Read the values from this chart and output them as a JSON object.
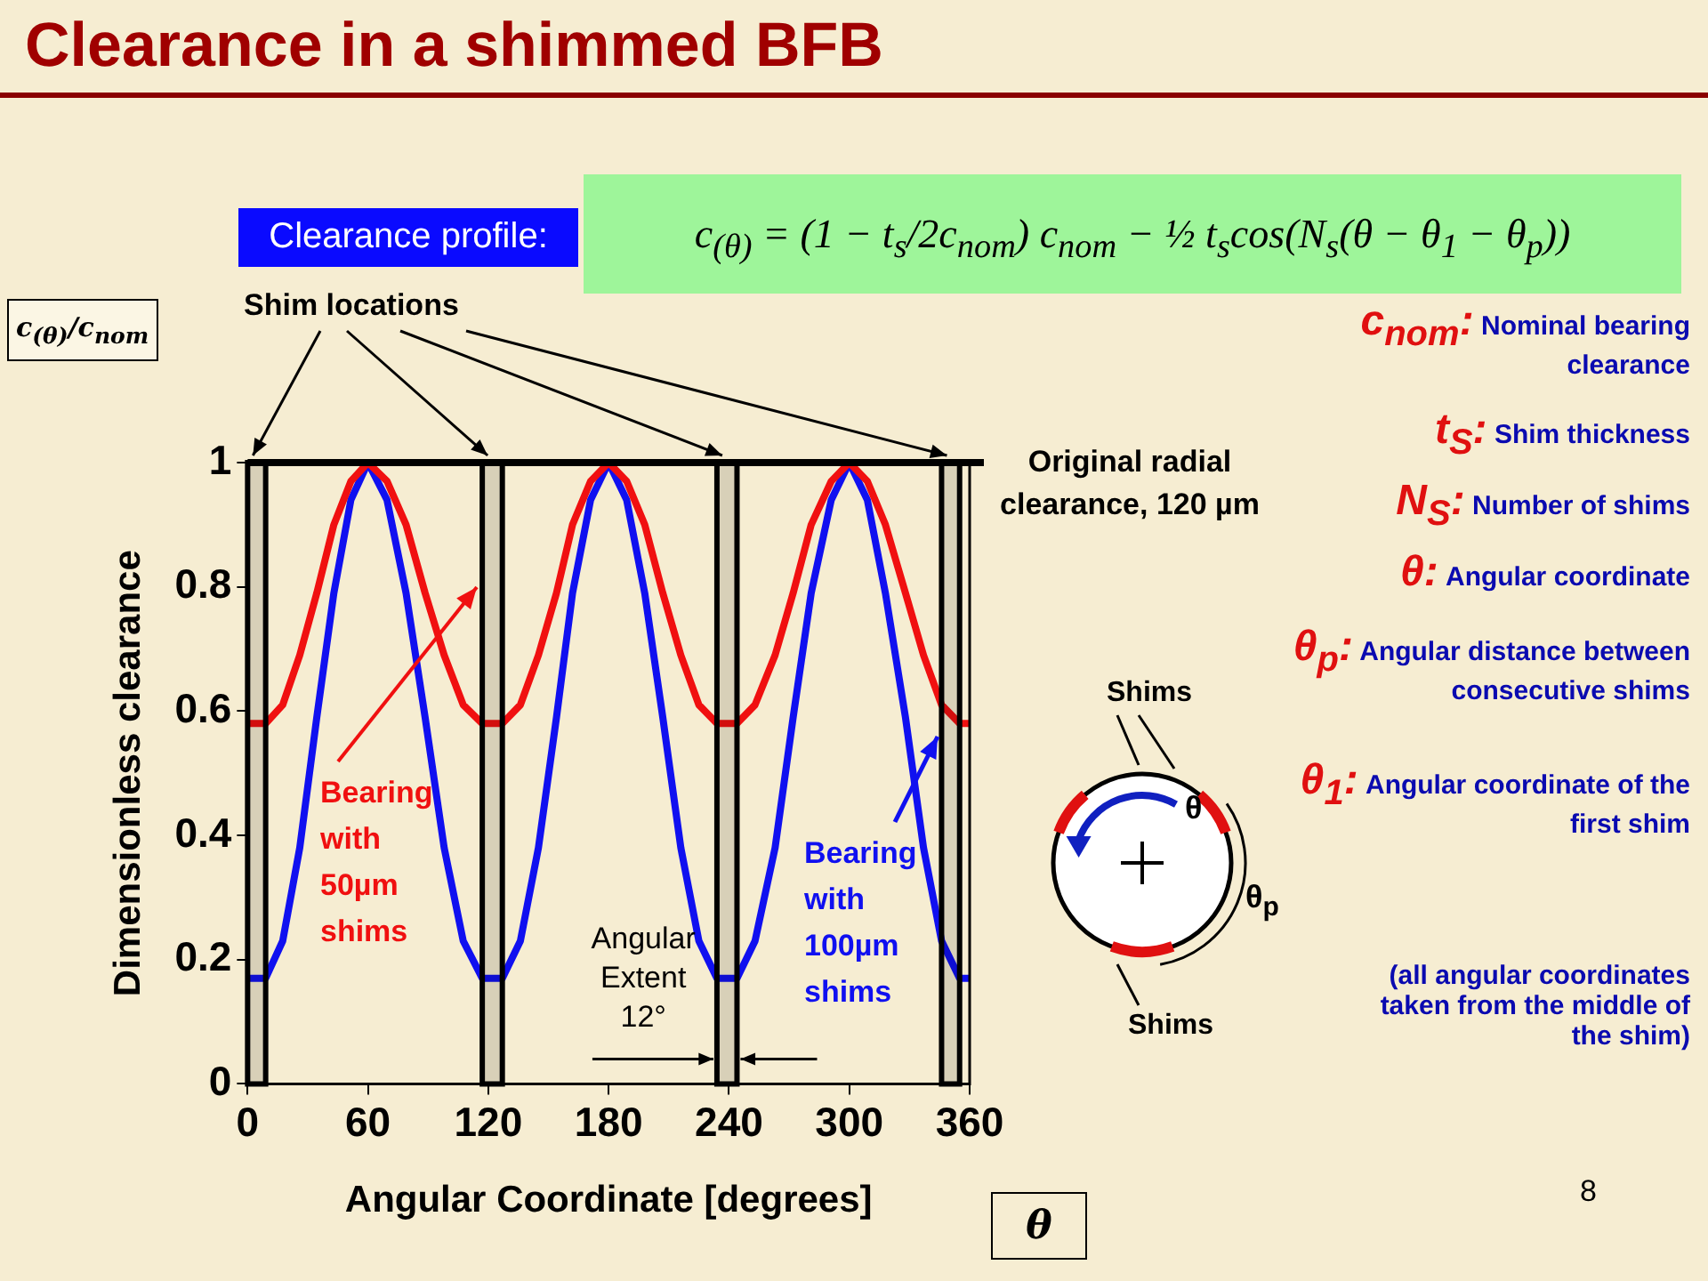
{
  "chart_data": {
    "type": "line",
    "title": "Clearance in a shimmed BFB",
    "xlabel": "Angular Coordinate [degrees]",
    "ylabel": "Dimensionless clearance",
    "x": [
      0,
      9,
      17.5,
      26,
      34.5,
      43,
      51.5,
      60,
      69.5,
      79,
      88.5,
      98,
      107.5,
      117,
      127,
      136,
      145,
      154,
      162,
      171,
      180,
      189,
      198,
      207,
      216,
      225,
      234,
      244,
      253,
      263,
      272,
      281,
      291,
      300,
      309,
      318,
      328,
      337,
      346,
      355,
      360
    ],
    "xlim": [
      0,
      360
    ],
    "xticks": [
      0,
      60,
      120,
      180,
      240,
      300,
      360
    ],
    "ylim": [
      0,
      1
    ],
    "yticks": [
      0,
      0.2,
      0.4,
      0.6,
      0.8,
      1
    ],
    "grid": false,
    "legend": false,
    "marker": "none",
    "line_style": "solid",
    "series": [
      {
        "name": "Bearing with 50µm shims",
        "color": "#f01010",
        "values": [
          0.58,
          0.58,
          0.61,
          0.69,
          0.79,
          0.9,
          0.97,
          1,
          0.97,
          0.9,
          0.79,
          0.69,
          0.61,
          0.58,
          0.58,
          0.61,
          0.69,
          0.79,
          0.9,
          0.97,
          1,
          0.97,
          0.9,
          0.79,
          0.69,
          0.61,
          0.58,
          0.58,
          0.61,
          0.69,
          0.79,
          0.9,
          0.97,
          1,
          0.97,
          0.9,
          0.79,
          0.69,
          0.61,
          0.58,
          0.58
        ]
      },
      {
        "name": "Bearing with 100µm shims",
        "color": "#1010f0",
        "values": [
          0.17,
          0.17,
          0.23,
          0.38,
          0.59,
          0.79,
          0.94,
          1,
          0.94,
          0.79,
          0.59,
          0.38,
          0.23,
          0.17,
          0.17,
          0.23,
          0.38,
          0.59,
          0.79,
          0.94,
          1,
          0.94,
          0.79,
          0.59,
          0.38,
          0.23,
          0.17,
          0.17,
          0.23,
          0.38,
          0.59,
          0.79,
          0.94,
          1,
          0.94,
          0.79,
          0.59,
          0.38,
          0.23,
          0.17,
          0.17
        ]
      }
    ],
    "ref_lines": [
      {
        "axis": "y",
        "value": 1,
        "label": "Original radial clearance, 120 µm",
        "color": "#000000"
      }
    ],
    "bands": [
      {
        "axis": "x",
        "from": 0,
        "to": 9,
        "color": "#000000"
      },
      {
        "axis": "x",
        "from": 117,
        "to": 127,
        "color": "#000000"
      },
      {
        "axis": "x",
        "from": 234,
        "to": 244,
        "color": "#000000"
      },
      {
        "axis": "x",
        "from": 346,
        "to": 355,
        "color": "#000000"
      }
    ],
    "annotations": [
      "Clearance profile:",
      "c$_{(θ)}$ = (1 − t$_{s}$/2c$_{nom}$) c$_{nom}$ − ½ t$_{s}$cos(N$_{s}$(θ − θ$_{1}$ − θ$_{p}$))",
      "c$_{(θ)}$/c$_{nom}$",
      "θ",
      "Shim locations",
      {
        "text": "Angular Extent 12°",
        "x": 239,
        "y": 0.04
      },
      "Shims",
      "θ",
      "θ$_{p}$",
      "Shims",
      "c$_{nom}$:",
      "Nominal bearing clearance",
      "t$_{S}$:",
      "Shim thickness",
      "N$_{S}$:",
      "Number of shims",
      "θ:",
      "Angular coordinate",
      "θ$_{p}$:",
      "Angular distance between consecutive shims",
      "θ$_{1}$:",
      "Angular coordinate of the first shim",
      "(all angular coordinates taken from the middle of the shim)",
      "8"
    ]
  }
}
